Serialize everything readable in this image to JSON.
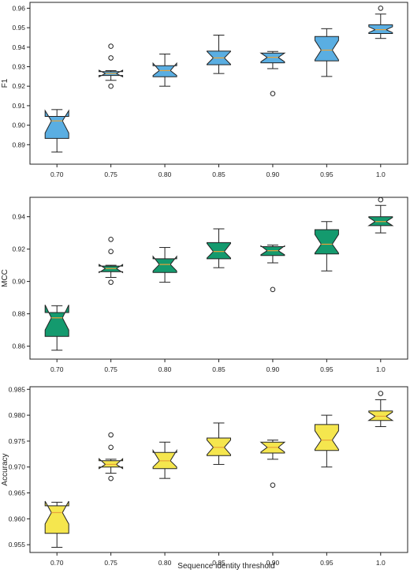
{
  "figure": {
    "xlabel": "Sequence identity threshold"
  },
  "chart_data": [
    {
      "type": "box",
      "ylabel": "F1",
      "categories": [
        "0.70",
        "0.75",
        "0.80",
        "0.85",
        "0.90",
        "0.95",
        "1.0"
      ],
      "ylim": [
        0.88,
        0.963
      ],
      "yticks": [
        0.89,
        0.9,
        0.91,
        0.92,
        0.93,
        0.94,
        0.95,
        0.96
      ],
      "ytick_labels": [
        "0.89",
        "0.90",
        "0.91",
        "0.92",
        "0.93",
        "0.94",
        "0.95",
        "0.96"
      ],
      "color": "#5aaee2",
      "grid": false,
      "boxes": [
        {
          "q1": 0.8932,
          "median": 0.9022,
          "q3": 0.9045,
          "whislo": 0.8862,
          "whishi": 0.908,
          "notch_lo": 0.896,
          "notch_hi": 0.9075,
          "fliers": []
        },
        {
          "q1": 0.9255,
          "median": 0.9265,
          "q3": 0.9275,
          "whislo": 0.923,
          "whishi": 0.928,
          "notch_lo": 0.9248,
          "notch_hi": 0.9282,
          "fliers": [
            0.92,
            0.9345,
            0.9405
          ]
        },
        {
          "q1": 0.9248,
          "median": 0.928,
          "q3": 0.9305,
          "whislo": 0.92,
          "whishi": 0.9365,
          "notch_lo": 0.9255,
          "notch_hi": 0.9318,
          "fliers": []
        },
        {
          "q1": 0.931,
          "median": 0.9345,
          "q3": 0.938,
          "whislo": 0.9265,
          "whishi": 0.9462,
          "notch_lo": 0.9312,
          "notch_hi": 0.9378,
          "fliers": []
        },
        {
          "q1": 0.932,
          "median": 0.9348,
          "q3": 0.937,
          "whislo": 0.929,
          "whishi": 0.9378,
          "notch_lo": 0.9325,
          "notch_hi": 0.937,
          "fliers": [
            0.9162
          ]
        },
        {
          "q1": 0.933,
          "median": 0.9385,
          "q3": 0.9455,
          "whislo": 0.925,
          "whishi": 0.9495,
          "notch_lo": 0.9335,
          "notch_hi": 0.9435,
          "fliers": []
        },
        {
          "q1": 0.947,
          "median": 0.949,
          "q3": 0.9515,
          "whislo": 0.9445,
          "whishi": 0.957,
          "notch_lo": 0.9475,
          "notch_hi": 0.9505,
          "fliers": [
            0.96
          ]
        }
      ]
    },
    {
      "type": "box",
      "ylabel": "MCC",
      "categories": [
        "0.70",
        "0.75",
        "0.80",
        "0.85",
        "0.90",
        "0.95",
        "1.0"
      ],
      "ylim": [
        0.852,
        0.952
      ],
      "yticks": [
        0.86,
        0.88,
        0.9,
        0.92,
        0.94
      ],
      "ytick_labels": [
        "0.86",
        "0.88",
        "0.90",
        "0.92",
        "0.94"
      ],
      "color": "#149a6e",
      "grid": false,
      "boxes": [
        {
          "q1": 0.866,
          "median": 0.8775,
          "q3": 0.8808,
          "whislo": 0.8575,
          "whishi": 0.885,
          "notch_lo": 0.87,
          "notch_hi": 0.8855,
          "fliers": []
        },
        {
          "q1": 0.906,
          "median": 0.908,
          "q3": 0.9095,
          "whislo": 0.9025,
          "whishi": 0.91,
          "notch_lo": 0.9055,
          "notch_hi": 0.9105,
          "fliers": [
            0.8995,
            0.9185,
            0.926
          ]
        },
        {
          "q1": 0.9055,
          "median": 0.9105,
          "q3": 0.914,
          "whislo": 0.8995,
          "whishi": 0.921,
          "notch_lo": 0.9065,
          "notch_hi": 0.9155,
          "fliers": []
        },
        {
          "q1": 0.914,
          "median": 0.9185,
          "q3": 0.924,
          "whislo": 0.9085,
          "whishi": 0.9325,
          "notch_lo": 0.9145,
          "notch_hi": 0.9235,
          "fliers": []
        },
        {
          "q1": 0.916,
          "median": 0.919,
          "q3": 0.9215,
          "whislo": 0.9115,
          "whishi": 0.9225,
          "notch_lo": 0.9165,
          "notch_hi": 0.922,
          "fliers": [
            0.895
          ]
        },
        {
          "q1": 0.917,
          "median": 0.923,
          "q3": 0.932,
          "whislo": 0.9065,
          "whishi": 0.937,
          "notch_lo": 0.9175,
          "notch_hi": 0.929,
          "fliers": []
        },
        {
          "q1": 0.9345,
          "median": 0.937,
          "q3": 0.94,
          "whislo": 0.93,
          "whishi": 0.947,
          "notch_lo": 0.9345,
          "notch_hi": 0.9395,
          "fliers": [
            0.9505
          ]
        }
      ]
    },
    {
      "type": "box",
      "ylabel": "Accuracy",
      "categories": [
        "0.70",
        "0.75",
        "0.80",
        "0.85",
        "0.90",
        "0.95",
        "1.0"
      ],
      "ylim": [
        0.9535,
        0.9855
      ],
      "yticks": [
        0.955,
        0.96,
        0.965,
        0.97,
        0.975,
        0.98,
        0.985
      ],
      "ytick_labels": [
        "0.955",
        "0.960",
        "0.965",
        "0.970",
        "0.975",
        "0.980",
        "0.985"
      ],
      "color": "#f5e64e",
      "grid": false,
      "boxes": [
        {
          "q1": 0.9572,
          "median": 0.9612,
          "q3": 0.9625,
          "whislo": 0.9545,
          "whishi": 0.9632,
          "notch_lo": 0.959,
          "notch_hi": 0.9634,
          "fliers": []
        },
        {
          "q1": 0.97,
          "median": 0.9705,
          "q3": 0.9712,
          "whislo": 0.9688,
          "whishi": 0.9715,
          "notch_lo": 0.9697,
          "notch_hi": 0.9716,
          "fliers": [
            0.9678,
            0.9738,
            0.9762
          ]
        },
        {
          "q1": 0.9697,
          "median": 0.9712,
          "q3": 0.9728,
          "whislo": 0.9678,
          "whishi": 0.9748,
          "notch_lo": 0.97,
          "notch_hi": 0.9732,
          "fliers": []
        },
        {
          "q1": 0.9722,
          "median": 0.9738,
          "q3": 0.9756,
          "whislo": 0.9705,
          "whishi": 0.9785,
          "notch_lo": 0.9724,
          "notch_hi": 0.9752,
          "fliers": []
        },
        {
          "q1": 0.9727,
          "median": 0.9738,
          "q3": 0.9748,
          "whislo": 0.9715,
          "whishi": 0.9752,
          "notch_lo": 0.9729,
          "notch_hi": 0.9748,
          "fliers": [
            0.9665
          ]
        },
        {
          "q1": 0.9732,
          "median": 0.9752,
          "q3": 0.9782,
          "whislo": 0.97,
          "whishi": 0.98,
          "notch_lo": 0.9734,
          "notch_hi": 0.977,
          "fliers": []
        },
        {
          "q1": 0.979,
          "median": 0.9798,
          "q3": 0.9808,
          "whislo": 0.9778,
          "whishi": 0.983,
          "notch_lo": 0.979,
          "notch_hi": 0.9806,
          "fliers": [
            0.9842
          ]
        }
      ]
    }
  ]
}
